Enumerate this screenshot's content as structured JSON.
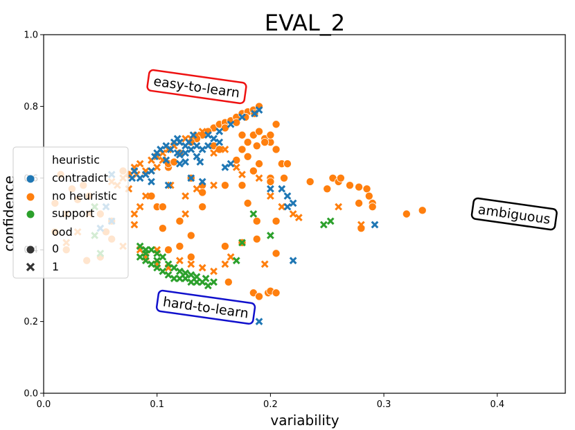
{
  "chart_data": {
    "type": "scatter",
    "title": "EVAL_2",
    "xlabel": "variability",
    "ylabel": "confidence",
    "xlim": [
      0.0,
      0.46
    ],
    "ylim": [
      0.0,
      1.0
    ],
    "x_ticks": [
      0.0,
      0.1,
      0.2,
      0.3,
      0.4
    ],
    "x_tick_labels": [
      "0.0",
      "0.1",
      "0.2",
      "0.3",
      "0.4"
    ],
    "y_ticks": [
      0.0,
      0.2,
      0.4,
      0.6,
      0.8,
      1.0
    ],
    "y_tick_labels": [
      "0.0",
      "0.2",
      "0.4",
      "0.6",
      "0.8",
      "1.0"
    ],
    "legend": {
      "position": "center-left",
      "hue_title": "heuristic",
      "hue_entries": [
        {
          "label": "contradict",
          "color": "#1f77b4"
        },
        {
          "label": "no heuristic",
          "color": "#ff7f0e"
        },
        {
          "label": "support",
          "color": "#2ca02c"
        }
      ],
      "style_title": "ood",
      "style_entries": [
        {
          "label": "0",
          "marker": "circle"
        },
        {
          "label": "1",
          "marker": "x"
        }
      ]
    },
    "annotations": [
      {
        "text": "easy-to-learn",
        "x": 0.135,
        "y": 0.855,
        "rotation": 8,
        "color": "#ee1111"
      },
      {
        "text": "ambiguous",
        "x": 0.415,
        "y": 0.5,
        "rotation": 8,
        "color": "#000000"
      },
      {
        "text": "hard-to-learn",
        "x": 0.143,
        "y": 0.24,
        "rotation": 8,
        "color": "#1010cc"
      }
    ],
    "series": [
      {
        "name": "no heuristic / ood 0",
        "color": "#ff7f0e",
        "marker": "circle",
        "points": [
          [
            0.15,
            0.74
          ],
          [
            0.155,
            0.75
          ],
          [
            0.16,
            0.755
          ],
          [
            0.165,
            0.76
          ],
          [
            0.17,
            0.77
          ],
          [
            0.175,
            0.78
          ],
          [
            0.18,
            0.785
          ],
          [
            0.185,
            0.79
          ],
          [
            0.19,
            0.8
          ],
          [
            0.145,
            0.73
          ],
          [
            0.14,
            0.72
          ],
          [
            0.135,
            0.71
          ],
          [
            0.13,
            0.7
          ],
          [
            0.16,
            0.74
          ],
          [
            0.17,
            0.755
          ],
          [
            0.178,
            0.77
          ],
          [
            0.186,
            0.78
          ],
          [
            0.175,
            0.72
          ],
          [
            0.18,
            0.7
          ],
          [
            0.185,
            0.72
          ],
          [
            0.19,
            0.73
          ],
          [
            0.195,
            0.71
          ],
          [
            0.2,
            0.7
          ],
          [
            0.2,
            0.72
          ],
          [
            0.205,
            0.75
          ],
          [
            0.18,
            0.66
          ],
          [
            0.188,
            0.69
          ],
          [
            0.195,
            0.7
          ],
          [
            0.205,
            0.68
          ],
          [
            0.21,
            0.64
          ],
          [
            0.19,
            0.64
          ],
          [
            0.15,
            0.69
          ],
          [
            0.155,
            0.68
          ],
          [
            0.175,
            0.68
          ],
          [
            0.17,
            0.65
          ],
          [
            0.12,
            0.67
          ],
          [
            0.11,
            0.63
          ],
          [
            0.11,
            0.64
          ],
          [
            0.115,
            0.645
          ],
          [
            0.13,
            0.6
          ],
          [
            0.14,
            0.58
          ],
          [
            0.16,
            0.58
          ],
          [
            0.175,
            0.58
          ],
          [
            0.185,
            0.62
          ],
          [
            0.2,
            0.6
          ],
          [
            0.212,
            0.6
          ],
          [
            0.215,
            0.64
          ],
          [
            0.235,
            0.59
          ],
          [
            0.255,
            0.6
          ],
          [
            0.26,
            0.59
          ],
          [
            0.262,
            0.6
          ],
          [
            0.27,
            0.58
          ],
          [
            0.278,
            0.575
          ],
          [
            0.285,
            0.57
          ],
          [
            0.287,
            0.55
          ],
          [
            0.29,
            0.53
          ],
          [
            0.278,
            0.53
          ],
          [
            0.29,
            0.52
          ],
          [
            0.32,
            0.5
          ],
          [
            0.334,
            0.51
          ],
          [
            0.28,
            0.46
          ],
          [
            0.25,
            0.57
          ],
          [
            0.205,
            0.48
          ],
          [
            0.188,
            0.48
          ],
          [
            0.18,
            0.53
          ],
          [
            0.2,
            0.59
          ],
          [
            0.1,
            0.52
          ],
          [
            0.105,
            0.52
          ],
          [
            0.105,
            0.46
          ],
          [
            0.12,
            0.48
          ],
          [
            0.13,
            0.44
          ],
          [
            0.14,
            0.52
          ],
          [
            0.14,
            0.56
          ],
          [
            0.11,
            0.4
          ],
          [
            0.12,
            0.41
          ],
          [
            0.175,
            0.42
          ],
          [
            0.188,
            0.43
          ],
          [
            0.205,
            0.39
          ],
          [
            0.16,
            0.41
          ],
          [
            0.13,
            0.38
          ],
          [
            0.163,
            0.31
          ],
          [
            0.198,
            0.28
          ],
          [
            0.2,
            0.285
          ],
          [
            0.205,
            0.28
          ],
          [
            0.185,
            0.28
          ],
          [
            0.19,
            0.27
          ],
          [
            0.095,
            0.55
          ],
          [
            0.075,
            0.61
          ],
          [
            0.07,
            0.62
          ],
          [
            0.06,
            0.43
          ],
          [
            0.06,
            0.48
          ],
          [
            0.055,
            0.45
          ],
          [
            0.05,
            0.5
          ],
          [
            0.04,
            0.55
          ],
          [
            0.035,
            0.58
          ],
          [
            0.025,
            0.57
          ],
          [
            0.03,
            0.54
          ],
          [
            0.015,
            0.61
          ],
          [
            0.01,
            0.53
          ],
          [
            0.01,
            0.45
          ],
          [
            0.02,
            0.4
          ],
          [
            0.038,
            0.37
          ],
          [
            0.05,
            0.38
          ]
        ]
      },
      {
        "name": "no heuristic / ood 1",
        "color": "#ff7f0e",
        "marker": "x",
        "points": [
          [
            0.09,
            0.62
          ],
          [
            0.085,
            0.64
          ],
          [
            0.095,
            0.65
          ],
          [
            0.1,
            0.66
          ],
          [
            0.105,
            0.67
          ],
          [
            0.11,
            0.68
          ],
          [
            0.115,
            0.69
          ],
          [
            0.12,
            0.7
          ],
          [
            0.125,
            0.71
          ],
          [
            0.13,
            0.71
          ],
          [
            0.135,
            0.72
          ],
          [
            0.14,
            0.73
          ],
          [
            0.1,
            0.63
          ],
          [
            0.105,
            0.65
          ],
          [
            0.095,
            0.62
          ],
          [
            0.08,
            0.63
          ],
          [
            0.082,
            0.61
          ],
          [
            0.07,
            0.6
          ],
          [
            0.06,
            0.59
          ],
          [
            0.065,
            0.58
          ],
          [
            0.075,
            0.57
          ],
          [
            0.08,
            0.5
          ],
          [
            0.085,
            0.52
          ],
          [
            0.09,
            0.55
          ],
          [
            0.112,
            0.58
          ],
          [
            0.125,
            0.55
          ],
          [
            0.125,
            0.5
          ],
          [
            0.135,
            0.57
          ],
          [
            0.15,
            0.58
          ],
          [
            0.15,
            0.67
          ],
          [
            0.16,
            0.68
          ],
          [
            0.17,
            0.63
          ],
          [
            0.175,
            0.61
          ],
          [
            0.19,
            0.6
          ],
          [
            0.2,
            0.55
          ],
          [
            0.21,
            0.52
          ],
          [
            0.22,
            0.5
          ],
          [
            0.225,
            0.49
          ],
          [
            0.26,
            0.52
          ],
          [
            0.28,
            0.47
          ],
          [
            0.11,
            0.35
          ],
          [
            0.1,
            0.36
          ],
          [
            0.09,
            0.38
          ],
          [
            0.085,
            0.4
          ],
          [
            0.1,
            0.4
          ],
          [
            0.12,
            0.37
          ],
          [
            0.13,
            0.36
          ],
          [
            0.14,
            0.35
          ],
          [
            0.15,
            0.34
          ],
          [
            0.16,
            0.36
          ],
          [
            0.165,
            0.38
          ],
          [
            0.195,
            0.36
          ],
          [
            0.07,
            0.41
          ],
          [
            0.08,
            0.47
          ],
          [
            0.04,
            0.5
          ],
          [
            0.045,
            0.52
          ],
          [
            0.03,
            0.45
          ],
          [
            0.02,
            0.42
          ],
          [
            0.02,
            0.5
          ]
        ]
      },
      {
        "name": "contradict / ood 1",
        "color": "#1f77b4",
        "marker": "x",
        "points": [
          [
            0.098,
            0.66
          ],
          [
            0.1,
            0.67
          ],
          [
            0.103,
            0.68
          ],
          [
            0.108,
            0.69
          ],
          [
            0.112,
            0.68
          ],
          [
            0.115,
            0.7
          ],
          [
            0.118,
            0.71
          ],
          [
            0.12,
            0.7
          ],
          [
            0.125,
            0.69
          ],
          [
            0.128,
            0.7
          ],
          [
            0.132,
            0.72
          ],
          [
            0.118,
            0.67
          ],
          [
            0.12,
            0.665
          ],
          [
            0.125,
            0.67
          ],
          [
            0.13,
            0.68
          ],
          [
            0.135,
            0.69
          ],
          [
            0.14,
            0.68
          ],
          [
            0.145,
            0.69
          ],
          [
            0.15,
            0.71
          ],
          [
            0.155,
            0.7
          ],
          [
            0.12,
            0.64
          ],
          [
            0.125,
            0.645
          ],
          [
            0.135,
            0.66
          ],
          [
            0.108,
            0.65
          ],
          [
            0.095,
            0.62
          ],
          [
            0.09,
            0.61
          ],
          [
            0.078,
            0.6
          ],
          [
            0.08,
            0.62
          ],
          [
            0.085,
            0.6
          ],
          [
            0.095,
            0.59
          ],
          [
            0.11,
            0.58
          ],
          [
            0.13,
            0.6
          ],
          [
            0.14,
            0.59
          ],
          [
            0.138,
            0.645
          ],
          [
            0.16,
            0.63
          ],
          [
            0.165,
            0.64
          ],
          [
            0.19,
            0.79
          ],
          [
            0.186,
            0.78
          ],
          [
            0.175,
            0.77
          ],
          [
            0.165,
            0.75
          ],
          [
            0.155,
            0.73
          ],
          [
            0.145,
            0.72
          ],
          [
            0.2,
            0.57
          ],
          [
            0.21,
            0.57
          ],
          [
            0.215,
            0.55
          ],
          [
            0.215,
            0.52
          ],
          [
            0.22,
            0.53
          ],
          [
            0.22,
            0.37
          ],
          [
            0.19,
            0.2
          ],
          [
            0.292,
            0.47
          ],
          [
            0.06,
            0.48
          ],
          [
            0.055,
            0.52
          ],
          [
            0.05,
            0.46
          ],
          [
            0.06,
            0.61
          ]
        ]
      },
      {
        "name": "support / ood 1",
        "color": "#2ca02c",
        "marker": "x",
        "points": [
          [
            0.095,
            0.4
          ],
          [
            0.1,
            0.39
          ],
          [
            0.105,
            0.38
          ],
          [
            0.09,
            0.39
          ],
          [
            0.085,
            0.38
          ],
          [
            0.09,
            0.37
          ],
          [
            0.095,
            0.36
          ],
          [
            0.1,
            0.35
          ],
          [
            0.105,
            0.34
          ],
          [
            0.11,
            0.33
          ],
          [
            0.115,
            0.32
          ],
          [
            0.12,
            0.32
          ],
          [
            0.125,
            0.32
          ],
          [
            0.13,
            0.31
          ],
          [
            0.135,
            0.31
          ],
          [
            0.14,
            0.31
          ],
          [
            0.145,
            0.3
          ],
          [
            0.11,
            0.36
          ],
          [
            0.12,
            0.34
          ],
          [
            0.13,
            0.33
          ],
          [
            0.085,
            0.41
          ],
          [
            0.09,
            0.4
          ],
          [
            0.1,
            0.37
          ],
          [
            0.115,
            0.35
          ],
          [
            0.125,
            0.335
          ],
          [
            0.135,
            0.325
          ],
          [
            0.143,
            0.32
          ],
          [
            0.15,
            0.31
          ],
          [
            0.175,
            0.42
          ],
          [
            0.17,
            0.37
          ],
          [
            0.185,
            0.5
          ],
          [
            0.2,
            0.44
          ],
          [
            0.247,
            0.47
          ],
          [
            0.253,
            0.48
          ],
          [
            0.05,
            0.39
          ],
          [
            0.045,
            0.44
          ],
          [
            0.045,
            0.52
          ]
        ]
      }
    ]
  }
}
